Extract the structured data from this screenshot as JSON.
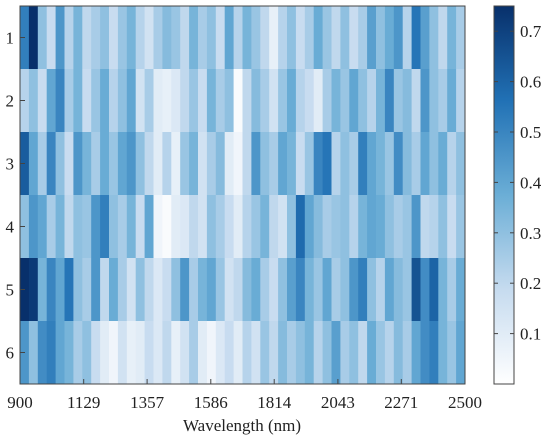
{
  "chart_data": {
    "type": "heatmap",
    "xlabel": "Wavelength (nm)",
    "ylabel": "",
    "title": "",
    "x_range": [
      900,
      2500
    ],
    "x_ticks": [
      900,
      1129,
      1357,
      1586,
      1814,
      2043,
      2271,
      2500
    ],
    "row_labels": [
      "1",
      "2",
      "3",
      "4",
      "5",
      "6"
    ],
    "color_range": [
      0.0,
      0.75
    ],
    "colorbar_ticks": [
      0.1,
      0.2,
      0.3,
      0.4,
      0.5,
      0.6,
      0.7
    ],
    "colormap": [
      "#ffffff",
      "#c6dbef",
      "#6baed6",
      "#2171b5",
      "#08306b"
    ],
    "legend_position": "right",
    "grid": false,
    "rows": [
      [
        0.52,
        0.75,
        0.3,
        0.18,
        0.45,
        0.22,
        0.35,
        0.2,
        0.25,
        0.3,
        0.18,
        0.28,
        0.35,
        0.22,
        0.15,
        0.25,
        0.32,
        0.28,
        0.2,
        0.35,
        0.25,
        0.3,
        0.18,
        0.4,
        0.22,
        0.35,
        0.28,
        0.2,
        0.08,
        0.22,
        0.3,
        0.18,
        0.25,
        0.38,
        0.28,
        0.2,
        0.3,
        0.18,
        0.25,
        0.42,
        0.3,
        0.38,
        0.45,
        0.22,
        0.55,
        0.42,
        0.3,
        0.2,
        0.35,
        0.25
      ],
      [
        0.22,
        0.3,
        0.18,
        0.4,
        0.5,
        0.25,
        0.35,
        0.18,
        0.28,
        0.38,
        0.22,
        0.3,
        0.4,
        0.15,
        0.25,
        0.1,
        0.08,
        0.12,
        0.2,
        0.28,
        0.18,
        0.35,
        0.25,
        0.3,
        0.02,
        0.2,
        0.32,
        0.25,
        0.15,
        0.28,
        0.38,
        0.22,
        0.18,
        0.1,
        0.25,
        0.35,
        0.28,
        0.4,
        0.3,
        0.22,
        0.35,
        0.5,
        0.28,
        0.32,
        0.2,
        0.45,
        0.3,
        0.25,
        0.38,
        0.22
      ],
      [
        0.62,
        0.4,
        0.25,
        0.5,
        0.3,
        0.18,
        0.45,
        0.35,
        0.25,
        0.38,
        0.28,
        0.4,
        0.45,
        0.3,
        0.2,
        0.1,
        0.22,
        0.08,
        0.28,
        0.35,
        0.15,
        0.25,
        0.32,
        0.1,
        0.05,
        0.2,
        0.45,
        0.3,
        0.25,
        0.4,
        0.35,
        0.18,
        0.28,
        0.5,
        0.55,
        0.22,
        0.3,
        0.25,
        0.52,
        0.4,
        0.35,
        0.28,
        0.48,
        0.32,
        0.25,
        0.4,
        0.3,
        0.38,
        0.22,
        0.3
      ],
      [
        0.3,
        0.45,
        0.4,
        0.25,
        0.35,
        0.2,
        0.3,
        0.28,
        0.45,
        0.52,
        0.3,
        0.25,
        0.35,
        0.18,
        0.4,
        0.05,
        0.02,
        0.1,
        0.12,
        0.2,
        0.15,
        0.3,
        0.25,
        0.18,
        0.1,
        0.22,
        0.28,
        0.35,
        0.2,
        0.15,
        0.3,
        0.58,
        0.4,
        0.32,
        0.25,
        0.28,
        0.3,
        0.22,
        0.35,
        0.4,
        0.38,
        0.3,
        0.25,
        0.28,
        0.45,
        0.2,
        0.22,
        0.3,
        0.18,
        0.28
      ],
      [
        0.75,
        0.72,
        0.35,
        0.5,
        0.4,
        0.55,
        0.3,
        0.25,
        0.45,
        0.2,
        0.38,
        0.25,
        0.15,
        0.3,
        0.2,
        0.12,
        0.18,
        0.3,
        0.45,
        0.25,
        0.35,
        0.4,
        0.28,
        0.15,
        0.2,
        0.32,
        0.38,
        0.25,
        0.18,
        0.3,
        0.42,
        0.5,
        0.35,
        0.28,
        0.4,
        0.25,
        0.3,
        0.45,
        0.52,
        0.3,
        0.22,
        0.4,
        0.32,
        0.28,
        0.65,
        0.48,
        0.6,
        0.35,
        0.25,
        0.38
      ],
      [
        0.45,
        0.3,
        0.48,
        0.52,
        0.4,
        0.35,
        0.25,
        0.3,
        0.18,
        0.1,
        0.05,
        0.15,
        0.08,
        0.1,
        0.18,
        0.12,
        0.2,
        0.08,
        0.15,
        0.25,
        0.1,
        0.05,
        0.12,
        0.18,
        0.1,
        0.22,
        0.15,
        0.28,
        0.2,
        0.32,
        0.25,
        0.3,
        0.35,
        0.22,
        0.3,
        0.42,
        0.25,
        0.3,
        0.2,
        0.38,
        0.28,
        0.22,
        0.32,
        0.25,
        0.4,
        0.48,
        0.52,
        0.35,
        0.28,
        0.4
      ]
    ]
  }
}
